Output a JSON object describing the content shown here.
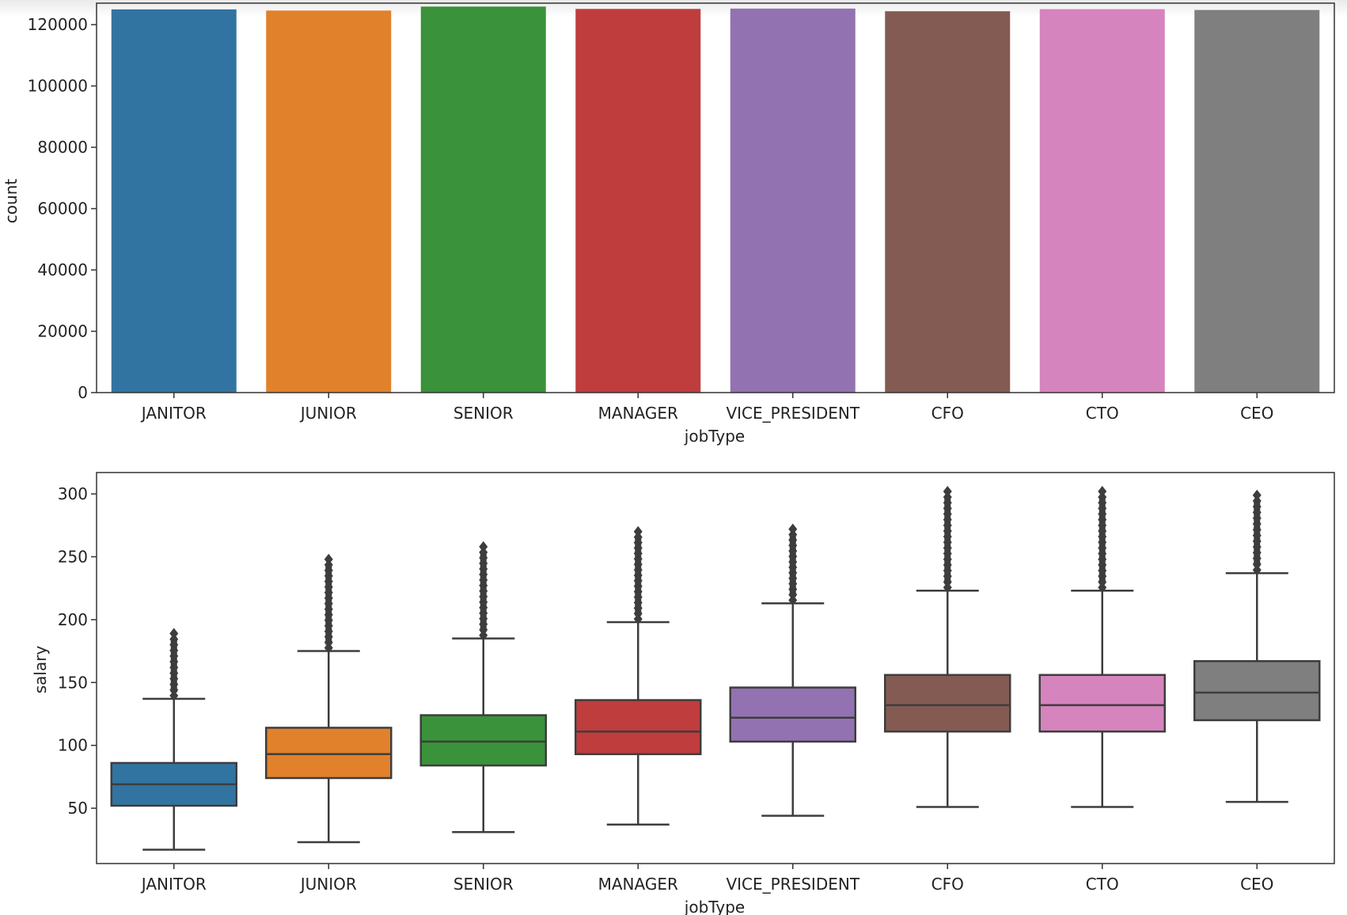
{
  "chart_data": [
    {
      "type": "bar",
      "title": "",
      "xlabel": "jobType",
      "ylabel": "count",
      "categories": [
        "JANITOR",
        "JUNIOR",
        "SENIOR",
        "MANAGER",
        "VICE_PRESIDENT",
        "CFO",
        "CTO",
        "CEO"
      ],
      "values": [
        124971,
        124594,
        125886,
        125121,
        125235,
        124369,
        125046,
        124778
      ],
      "colors": [
        "#3274a1",
        "#e1812c",
        "#3a923a",
        "#c03d3e",
        "#9372b2",
        "#845b53",
        "#d684bd",
        "#7f7f7f"
      ],
      "ylim": [
        0,
        127000
      ],
      "yticks": [
        0,
        20000,
        40000,
        60000,
        80000,
        100000,
        120000
      ],
      "ytick_labels": [
        "0",
        "20000",
        "40000",
        "60000",
        "80000",
        "100000",
        "120000"
      ],
      "grid": false
    },
    {
      "type": "box",
      "title": "",
      "xlabel": "jobType",
      "ylabel": "salary",
      "categories": [
        "JANITOR",
        "JUNIOR",
        "SENIOR",
        "MANAGER",
        "VICE_PRESIDENT",
        "CFO",
        "CTO",
        "CEO"
      ],
      "colors": [
        "#3274a1",
        "#e1812c",
        "#3a923a",
        "#c03d3e",
        "#9372b2",
        "#845b53",
        "#d684bd",
        "#7f7f7f"
      ],
      "series": [
        {
          "name": "JANITOR",
          "whisker_low": 17,
          "q1": 52,
          "median": 69,
          "q3": 86,
          "whisker_high": 137,
          "outlier_max": 189
        },
        {
          "name": "JUNIOR",
          "whisker_low": 23,
          "q1": 74,
          "median": 93,
          "q3": 114,
          "whisker_high": 175,
          "outlier_max": 248
        },
        {
          "name": "SENIOR",
          "whisker_low": 31,
          "q1": 84,
          "median": 103,
          "q3": 124,
          "whisker_high": 185,
          "outlier_max": 258
        },
        {
          "name": "MANAGER",
          "whisker_low": 37,
          "q1": 93,
          "median": 111,
          "q3": 136,
          "whisker_high": 198,
          "outlier_max": 270
        },
        {
          "name": "VICE_PRESIDENT",
          "whisker_low": 44,
          "q1": 103,
          "median": 122,
          "q3": 146,
          "whisker_high": 213,
          "outlier_max": 272
        },
        {
          "name": "CFO",
          "whisker_low": 51,
          "q1": 111,
          "median": 132,
          "q3": 156,
          "whisker_high": 223,
          "outlier_max": 302
        },
        {
          "name": "CTO",
          "whisker_low": 51,
          "q1": 111,
          "median": 132,
          "q3": 156,
          "whisker_high": 223,
          "outlier_max": 302
        },
        {
          "name": "CEO",
          "whisker_low": 55,
          "q1": 120,
          "median": 142,
          "q3": 167,
          "whisker_high": 237,
          "outlier_max": 299
        }
      ],
      "ylim": [
        6,
        317
      ],
      "yticks": [
        50,
        100,
        150,
        200,
        250,
        300
      ],
      "ytick_labels": [
        "50",
        "100",
        "150",
        "200",
        "250",
        "300"
      ],
      "grid": false
    }
  ]
}
